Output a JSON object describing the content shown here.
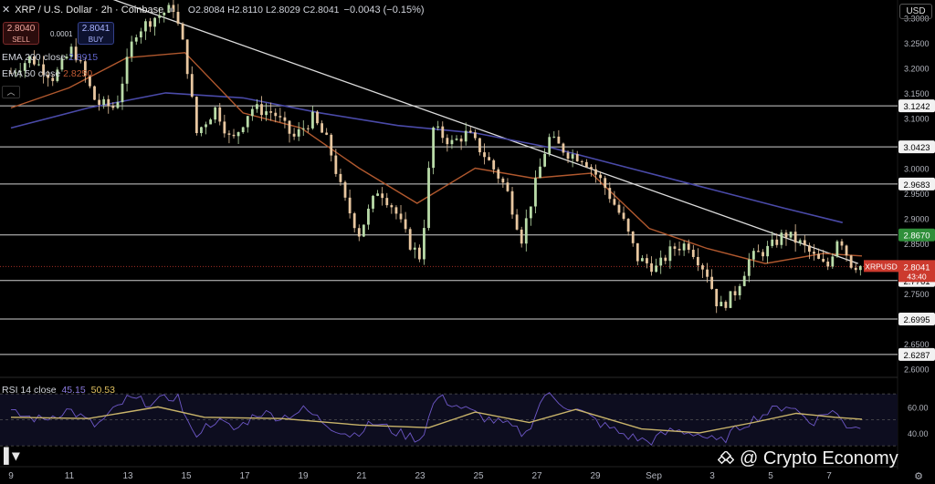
{
  "header": {
    "symbol": "XRP / U.S. Dollar · 2h · Coinbase",
    "ohlc": "O2.8084 H2.8110 L2.8029 C2.8041",
    "change": "−0.0043 (−0.15%)"
  },
  "trade": {
    "sell_price": "2.8040",
    "sell_label": "SELL",
    "spread": "0.0001",
    "buy_price": "2.8041",
    "buy_label": "BUY"
  },
  "indicators": {
    "ema200_label": "EMA 200 close",
    "ema200_value": "2.8915",
    "ema50_label": "EMA 50 close",
    "ema50_value": "2.8250",
    "rsi_label": "RSI 14 close",
    "rsi_value": "45.15",
    "rsi_ma_value": "50.53"
  },
  "currency": "USD",
  "watermark": "@ Crypto Economy",
  "colors": {
    "background": "#000000",
    "up": "#b9dba8",
    "down": "#e8c7a0",
    "ema200": "#4a4aa8",
    "ema50": "#b0582e",
    "levels": "#e6e6e6",
    "price_tag": "#cc3a2e",
    "green_tag": "#2f8f3a",
    "rsi": "#6e58c8",
    "rsi_ma": "#c9b46a"
  },
  "chart_data": {
    "type": "candlestick",
    "x_ticks": [
      "9",
      "11",
      "13",
      "15",
      "17",
      "19",
      "21",
      "23",
      "25",
      "27",
      "29",
      "Sep",
      "3",
      "5",
      "7"
    ],
    "y_ticks": [
      "3.3000",
      "3.2500",
      "3.2000",
      "3.1500",
      "3.1000",
      "3.0500",
      "3.0000",
      "2.9500",
      "2.9000",
      "2.8500",
      "2.8000",
      "2.7500",
      "2.7000",
      "2.6500",
      "2.6000"
    ],
    "ylim": [
      2.585,
      3.335
    ],
    "levels": [
      {
        "label": "3.1242",
        "value": 3.1242,
        "tag": "level"
      },
      {
        "label": "3.0423",
        "value": 3.0423,
        "tag": "level"
      },
      {
        "label": "2.9683",
        "value": 2.9683,
        "tag": "level"
      },
      {
        "label": "2.8670",
        "value": 2.867,
        "tag": "green"
      },
      {
        "label": "2.7761",
        "value": 2.7761,
        "tag": "level"
      },
      {
        "label": "2.6995",
        "value": 2.6995,
        "tag": "level"
      },
      {
        "label": "2.6287",
        "value": 2.6287,
        "tag": "level"
      }
    ],
    "last_price": {
      "symbol": "XRPUSD",
      "label": "2.8041",
      "value": 2.8041,
      "countdown": "43:40"
    },
    "trendline": {
      "start": {
        "x": 1.4,
        "y": 3.37
      },
      "end": {
        "x": 21.9,
        "y": 2.81
      }
    },
    "price_path": [
      {
        "x": 0.0,
        "y": 3.19
      },
      {
        "x": 0.5,
        "y": 3.22
      },
      {
        "x": 1.1,
        "y": 3.18
      },
      {
        "x": 1.6,
        "y": 3.24
      },
      {
        "x": 2.2,
        "y": 3.13
      },
      {
        "x": 2.7,
        "y": 3.12
      },
      {
        "x": 3.2,
        "y": 3.27
      },
      {
        "x": 3.7,
        "y": 3.3
      },
      {
        "x": 4.2,
        "y": 3.32
      },
      {
        "x": 4.5,
        "y": 3.23
      },
      {
        "x": 4.8,
        "y": 3.07
      },
      {
        "x": 5.3,
        "y": 3.12
      },
      {
        "x": 5.7,
        "y": 3.05
      },
      {
        "x": 6.2,
        "y": 3.12
      },
      {
        "x": 6.8,
        "y": 3.11
      },
      {
        "x": 7.3,
        "y": 3.06
      },
      {
        "x": 7.8,
        "y": 3.1
      },
      {
        "x": 8.2,
        "y": 3.05
      },
      {
        "x": 8.6,
        "y": 2.94
      },
      {
        "x": 9.0,
        "y": 2.87
      },
      {
        "x": 9.5,
        "y": 2.96
      },
      {
        "x": 9.9,
        "y": 2.92
      },
      {
        "x": 10.3,
        "y": 2.85
      },
      {
        "x": 10.6,
        "y": 2.82
      },
      {
        "x": 10.9,
        "y": 3.08
      },
      {
        "x": 11.4,
        "y": 3.05
      },
      {
        "x": 11.8,
        "y": 3.07
      },
      {
        "x": 12.3,
        "y": 3.02
      },
      {
        "x": 12.8,
        "y": 2.96
      },
      {
        "x": 13.2,
        "y": 2.86
      },
      {
        "x": 13.6,
        "y": 2.98
      },
      {
        "x": 13.9,
        "y": 3.06
      },
      {
        "x": 14.4,
        "y": 3.03
      },
      {
        "x": 14.8,
        "y": 3.02
      },
      {
        "x": 15.3,
        "y": 2.97
      },
      {
        "x": 15.8,
        "y": 2.9
      },
      {
        "x": 16.2,
        "y": 2.82
      },
      {
        "x": 16.7,
        "y": 2.8
      },
      {
        "x": 17.1,
        "y": 2.84
      },
      {
        "x": 17.5,
        "y": 2.85
      },
      {
        "x": 18.0,
        "y": 2.79
      },
      {
        "x": 18.3,
        "y": 2.72
      },
      {
        "x": 18.7,
        "y": 2.75
      },
      {
        "x": 19.1,
        "y": 2.82
      },
      {
        "x": 19.6,
        "y": 2.84
      },
      {
        "x": 20.0,
        "y": 2.87
      },
      {
        "x": 20.4,
        "y": 2.85
      },
      {
        "x": 20.8,
        "y": 2.82
      },
      {
        "x": 21.1,
        "y": 2.8
      },
      {
        "x": 21.4,
        "y": 2.87
      },
      {
        "x": 21.7,
        "y": 2.81
      },
      {
        "x": 22.0,
        "y": 2.804
      }
    ],
    "ema200": [
      {
        "x": 0.0,
        "y": 3.08
      },
      {
        "x": 2.0,
        "y": 3.12
      },
      {
        "x": 4.0,
        "y": 3.15
      },
      {
        "x": 6.0,
        "y": 3.14
      },
      {
        "x": 8.0,
        "y": 3.11
      },
      {
        "x": 10.0,
        "y": 3.085
      },
      {
        "x": 12.0,
        "y": 3.07
      },
      {
        "x": 14.0,
        "y": 3.04
      },
      {
        "x": 16.0,
        "y": 3.0
      },
      {
        "x": 18.0,
        "y": 2.96
      },
      {
        "x": 20.0,
        "y": 2.92
      },
      {
        "x": 21.5,
        "y": 2.8915
      }
    ],
    "ema50": [
      {
        "x": 0.0,
        "y": 3.12
      },
      {
        "x": 1.5,
        "y": 3.16
      },
      {
        "x": 3.0,
        "y": 3.22
      },
      {
        "x": 4.5,
        "y": 3.23
      },
      {
        "x": 6.0,
        "y": 3.11
      },
      {
        "x": 7.5,
        "y": 3.08
      },
      {
        "x": 9.0,
        "y": 3.0
      },
      {
        "x": 10.5,
        "y": 2.93
      },
      {
        "x": 12.0,
        "y": 3.0
      },
      {
        "x": 13.5,
        "y": 2.98
      },
      {
        "x": 15.0,
        "y": 2.99
      },
      {
        "x": 16.5,
        "y": 2.88
      },
      {
        "x": 18.0,
        "y": 2.84
      },
      {
        "x": 19.5,
        "y": 2.81
      },
      {
        "x": 21.0,
        "y": 2.83
      },
      {
        "x": 22.0,
        "y": 2.825
      }
    ],
    "rsi": {
      "ylim": [
        28,
        75
      ],
      "y_ticks": [
        "60.00",
        "40.00"
      ],
      "bands": [
        70,
        50,
        30
      ],
      "rsi_path": [
        {
          "x": 0.0,
          "y": 55
        },
        {
          "x": 0.8,
          "y": 50
        },
        {
          "x": 1.5,
          "y": 58
        },
        {
          "x": 2.2,
          "y": 45
        },
        {
          "x": 3.0,
          "y": 66
        },
        {
          "x": 3.7,
          "y": 63
        },
        {
          "x": 4.3,
          "y": 69
        },
        {
          "x": 4.7,
          "y": 38
        },
        {
          "x": 5.3,
          "y": 50
        },
        {
          "x": 5.8,
          "y": 42
        },
        {
          "x": 6.4,
          "y": 56
        },
        {
          "x": 7.0,
          "y": 52
        },
        {
          "x": 7.6,
          "y": 58
        },
        {
          "x": 8.2,
          "y": 46
        },
        {
          "x": 8.8,
          "y": 38
        },
        {
          "x": 9.4,
          "y": 48
        },
        {
          "x": 10.0,
          "y": 40
        },
        {
          "x": 10.6,
          "y": 35
        },
        {
          "x": 11.0,
          "y": 68
        },
        {
          "x": 11.6,
          "y": 60
        },
        {
          "x": 12.2,
          "y": 52
        },
        {
          "x": 12.9,
          "y": 45
        },
        {
          "x": 13.3,
          "y": 38
        },
        {
          "x": 13.8,
          "y": 70
        },
        {
          "x": 14.3,
          "y": 62
        },
        {
          "x": 14.8,
          "y": 55
        },
        {
          "x": 15.3,
          "y": 46
        },
        {
          "x": 15.9,
          "y": 38
        },
        {
          "x": 16.5,
          "y": 33
        },
        {
          "x": 17.1,
          "y": 42
        },
        {
          "x": 17.7,
          "y": 40
        },
        {
          "x": 18.3,
          "y": 32
        },
        {
          "x": 18.9,
          "y": 46
        },
        {
          "x": 19.5,
          "y": 55
        },
        {
          "x": 20.1,
          "y": 62
        },
        {
          "x": 20.7,
          "y": 48
        },
        {
          "x": 21.2,
          "y": 58
        },
        {
          "x": 21.6,
          "y": 46
        },
        {
          "x": 22.0,
          "y": 45.15
        }
      ],
      "ma_path": [
        {
          "x": 0.0,
          "y": 52
        },
        {
          "x": 2.0,
          "y": 51
        },
        {
          "x": 3.8,
          "y": 60
        },
        {
          "x": 5.0,
          "y": 52
        },
        {
          "x": 7.0,
          "y": 51
        },
        {
          "x": 9.0,
          "y": 46
        },
        {
          "x": 10.8,
          "y": 44
        },
        {
          "x": 12.0,
          "y": 56
        },
        {
          "x": 13.4,
          "y": 48
        },
        {
          "x": 14.6,
          "y": 58
        },
        {
          "x": 16.3,
          "y": 43
        },
        {
          "x": 17.8,
          "y": 40
        },
        {
          "x": 19.2,
          "y": 48
        },
        {
          "x": 20.3,
          "y": 55
        },
        {
          "x": 21.3,
          "y": 52
        },
        {
          "x": 22.0,
          "y": 50.53
        }
      ]
    }
  }
}
